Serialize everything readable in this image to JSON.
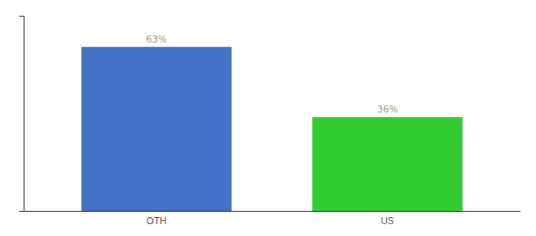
{
  "chart_data": {
    "type": "bar",
    "categories": [
      "OTH",
      "US"
    ],
    "values": [
      63,
      36
    ],
    "value_labels": [
      "63%",
      "36%"
    ],
    "colors": [
      "#4472C4",
      "#33CC33"
    ],
    "ylim": [
      0,
      75
    ],
    "yticks": [],
    "grid": false,
    "data_labels": true,
    "tick_labels": "x"
  }
}
